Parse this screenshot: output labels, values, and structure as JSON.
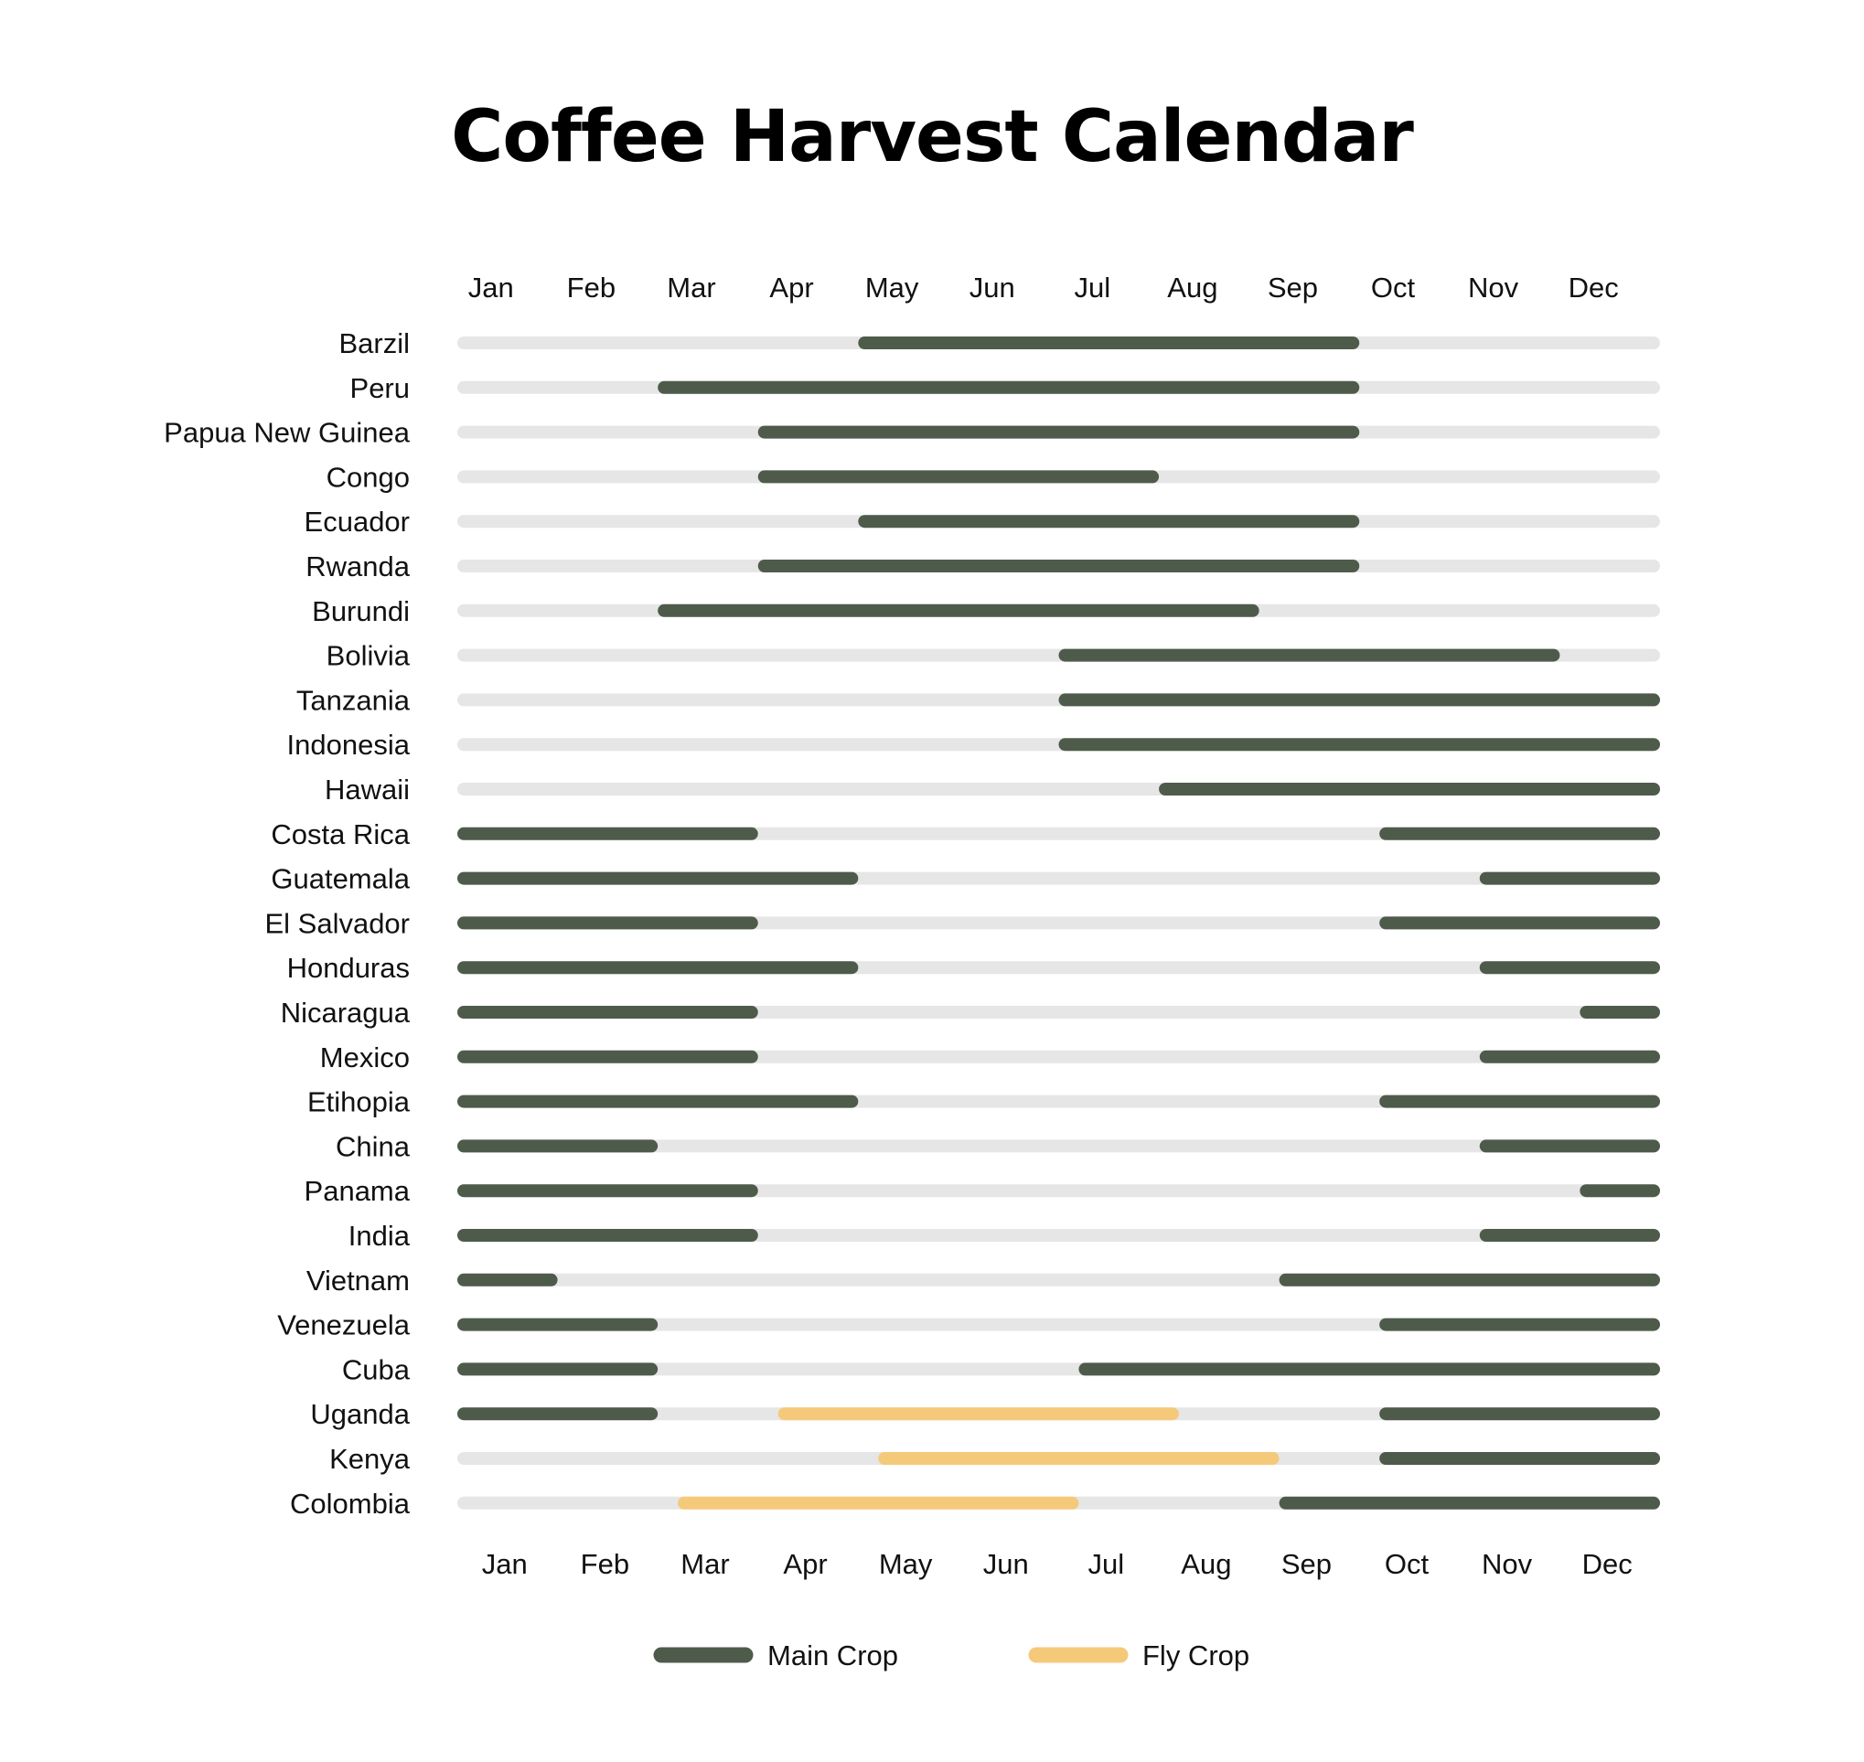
{
  "chart_data": {
    "type": "bar",
    "subtype": "timeline",
    "title": "Coffee Harvest Calendar",
    "months": [
      "Jan",
      "Feb",
      "Mar",
      "Apr",
      "May",
      "Jun",
      "Jul",
      "Aug",
      "Sep",
      "Oct",
      "Nov",
      "Dec"
    ],
    "x_range_months": [
      0,
      12
    ],
    "legend": [
      {
        "key": "main",
        "label": "Main Crop",
        "color": "#4e5b4b"
      },
      {
        "key": "fly",
        "label": "Fly Crop",
        "color": "#f5c97a"
      }
    ],
    "track_color": "#e6e6e6",
    "legend_position": "bottom-center",
    "grid": false,
    "rows": [
      {
        "country": "Barzil",
        "main": [
          [
            4.0,
            9.0
          ]
        ],
        "fly": []
      },
      {
        "country": "Peru",
        "main": [
          [
            2.0,
            9.0
          ]
        ],
        "fly": []
      },
      {
        "country": "Papua New Guinea",
        "main": [
          [
            3.0,
            9.0
          ]
        ],
        "fly": []
      },
      {
        "country": "Congo",
        "main": [
          [
            3.0,
            7.0
          ]
        ],
        "fly": []
      },
      {
        "country": "Ecuador",
        "main": [
          [
            4.0,
            9.0
          ]
        ],
        "fly": []
      },
      {
        "country": "Rwanda",
        "main": [
          [
            3.0,
            9.0
          ]
        ],
        "fly": []
      },
      {
        "country": "Burundi",
        "main": [
          [
            2.0,
            8.0
          ]
        ],
        "fly": []
      },
      {
        "country": "Bolivia",
        "main": [
          [
            6.0,
            11.0
          ]
        ],
        "fly": []
      },
      {
        "country": "Tanzania",
        "main": [
          [
            6.0,
            12.0
          ]
        ],
        "fly": []
      },
      {
        "country": "Indonesia",
        "main": [
          [
            6.0,
            12.0
          ]
        ],
        "fly": []
      },
      {
        "country": "Hawaii",
        "main": [
          [
            7.0,
            12.0
          ]
        ],
        "fly": []
      },
      {
        "country": "Costa Rica",
        "main": [
          [
            0.0,
            3.0
          ],
          [
            9.2,
            12.0
          ]
        ],
        "fly": []
      },
      {
        "country": "Guatemala",
        "main": [
          [
            0.0,
            4.0
          ],
          [
            10.2,
            12.0
          ]
        ],
        "fly": []
      },
      {
        "country": "El Salvador",
        "main": [
          [
            0.0,
            3.0
          ],
          [
            9.2,
            12.0
          ]
        ],
        "fly": []
      },
      {
        "country": "Honduras",
        "main": [
          [
            0.0,
            4.0
          ],
          [
            10.2,
            12.0
          ]
        ],
        "fly": []
      },
      {
        "country": "Nicaragua",
        "main": [
          [
            0.0,
            3.0
          ],
          [
            11.2,
            12.0
          ]
        ],
        "fly": []
      },
      {
        "country": "Mexico",
        "main": [
          [
            0.0,
            3.0
          ],
          [
            10.2,
            12.0
          ]
        ],
        "fly": []
      },
      {
        "country": "Etihopia",
        "main": [
          [
            0.0,
            4.0
          ],
          [
            9.2,
            12.0
          ]
        ],
        "fly": []
      },
      {
        "country": "China",
        "main": [
          [
            0.0,
            2.0
          ],
          [
            10.2,
            12.0
          ]
        ],
        "fly": []
      },
      {
        "country": "Panama",
        "main": [
          [
            0.0,
            3.0
          ],
          [
            11.2,
            12.0
          ]
        ],
        "fly": []
      },
      {
        "country": "India",
        "main": [
          [
            0.0,
            3.0
          ],
          [
            10.2,
            12.0
          ]
        ],
        "fly": []
      },
      {
        "country": "Vietnam",
        "main": [
          [
            0.0,
            1.0
          ],
          [
            8.2,
            12.0
          ]
        ],
        "fly": []
      },
      {
        "country": "Venezuela",
        "main": [
          [
            0.0,
            2.0
          ],
          [
            9.2,
            12.0
          ]
        ],
        "fly": []
      },
      {
        "country": "Cuba",
        "main": [
          [
            0.0,
            2.0
          ],
          [
            6.2,
            12.0
          ]
        ],
        "fly": []
      },
      {
        "country": "Uganda",
        "main": [
          [
            0.0,
            2.0
          ],
          [
            9.2,
            12.0
          ]
        ],
        "fly": [
          [
            3.2,
            7.2
          ]
        ]
      },
      {
        "country": "Kenya",
        "main": [
          [
            9.2,
            12.0
          ]
        ],
        "fly": [
          [
            4.2,
            8.2
          ]
        ]
      },
      {
        "country": "Colombia",
        "main": [
          [
            8.2,
            12.0
          ]
        ],
        "fly": [
          [
            2.2,
            6.2
          ]
        ]
      }
    ]
  }
}
